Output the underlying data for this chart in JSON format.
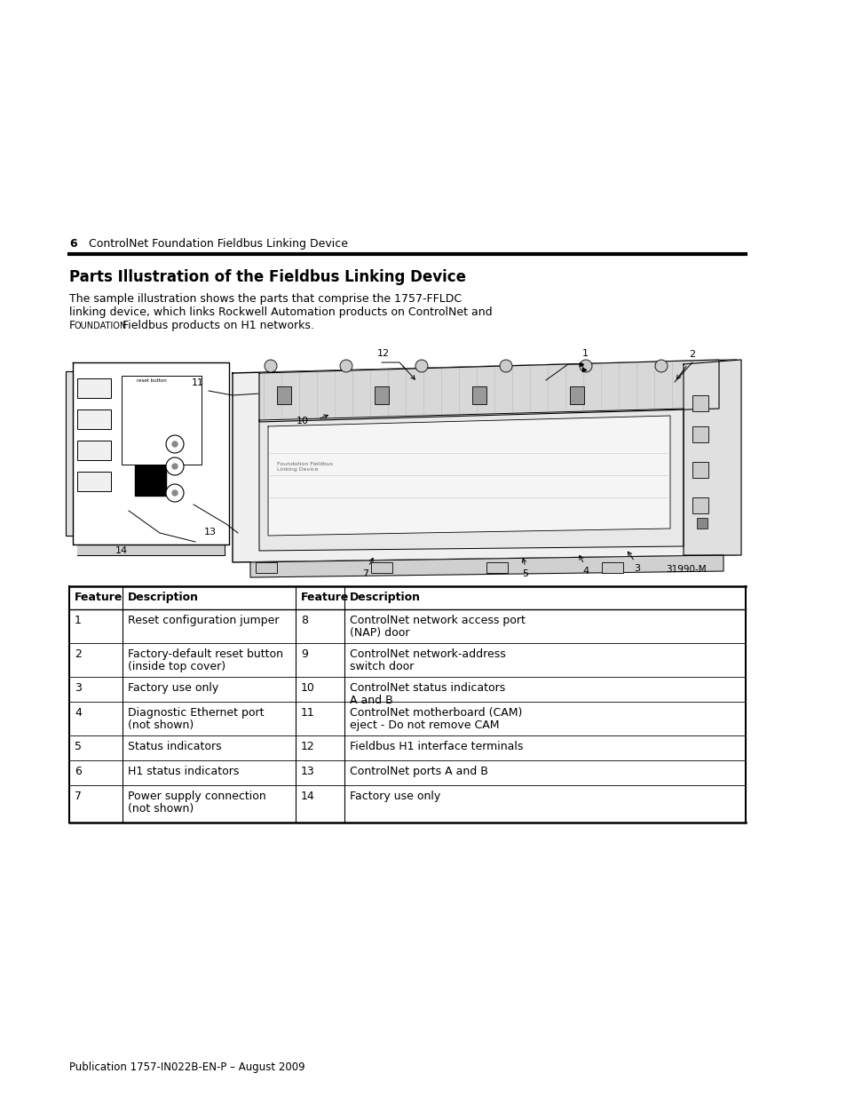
{
  "page_number": "6",
  "header_text": "ControlNet Foundation Fieldbus Linking Device",
  "section_title": "Parts Illustration of the Fieldbus Linking Device",
  "body_line1": "The sample illustration shows the parts that comprise the 1757-FFLDC",
  "body_line2": "linking device, which links Rockwell Automation products on ControlNet and",
  "body_line3_f": "F",
  "body_line3_oundation": "OUNDATION",
  "body_line3_rest": " Fieldbus products on H1 networks.",
  "image_caption": "31990-M",
  "footer_text": "Publication 1757-IN022B-EN-P – August 2009",
  "table_headers": [
    "Feature",
    "Description",
    "Feature",
    "Description"
  ],
  "table_rows": [
    [
      "1",
      "Reset configuration jumper",
      "8",
      "ControlNet network access port\n(NAP) door"
    ],
    [
      "2",
      "Factory-default reset button\n(inside top cover)",
      "9",
      "ControlNet network-address\nswitch door"
    ],
    [
      "3",
      "Factory use only",
      "10",
      "ControlNet status indicators\nA and B"
    ],
    [
      "4",
      "Diagnostic Ethernet port\n(not shown)",
      "11",
      "ControlNet motherboard (CAM)\neject - Do not remove CAM"
    ],
    [
      "5",
      "Status indicators",
      "12",
      "Fieldbus H1 interface terminals"
    ],
    [
      "6",
      "H1 status indicators",
      "13",
      "ControlNet ports A and B"
    ],
    [
      "7",
      "Power supply connection\n(not shown)",
      "14",
      "Factory use only"
    ]
  ],
  "bg_color": "#ffffff",
  "text_color": "#000000"
}
